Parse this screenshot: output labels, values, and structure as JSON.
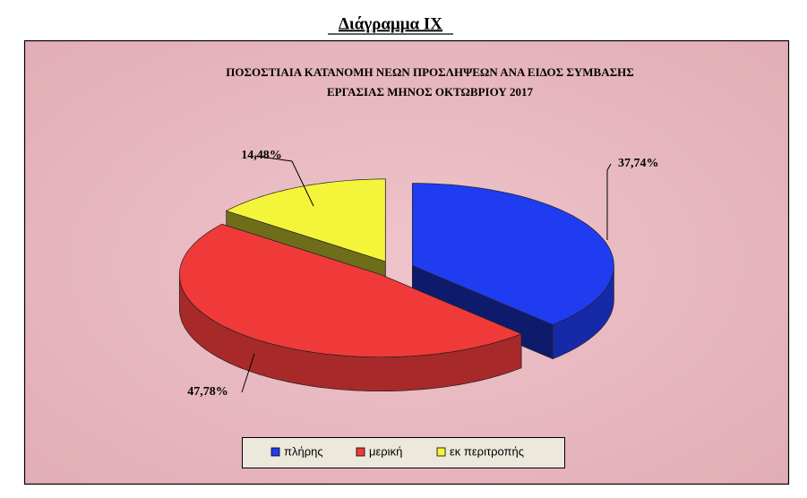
{
  "heading": "Διάγραμμα ΙΧ",
  "chart_data": {
    "type": "pie3d",
    "title": [
      "ΠΟΣΟΣΤΙΑΙΑ  ΚΑΤΑΝΟΜΗ  ΝΕΩΝ  ΠΡΟΣΛΗΨΕΩΝ ΑΝΑ ΕΙΔΟΣ ΣΥΜΒΑΣΗΣ",
      "ΕΡΓΑΣΙΑΣ ΜΗΝΟΣ  ΟΚΤΩΒΡΙΟΥ 2017"
    ],
    "categories": [
      "πλήρης",
      "μερική",
      "εκ περιτροπής"
    ],
    "values": [
      37.74,
      47.78,
      14.48
    ],
    "value_labels": [
      "37,74%",
      "47,78%",
      "14,48%"
    ],
    "colors": [
      "#1f3cf0",
      "#f03a3a",
      "#f4f43a"
    ],
    "legend": "bottom"
  }
}
